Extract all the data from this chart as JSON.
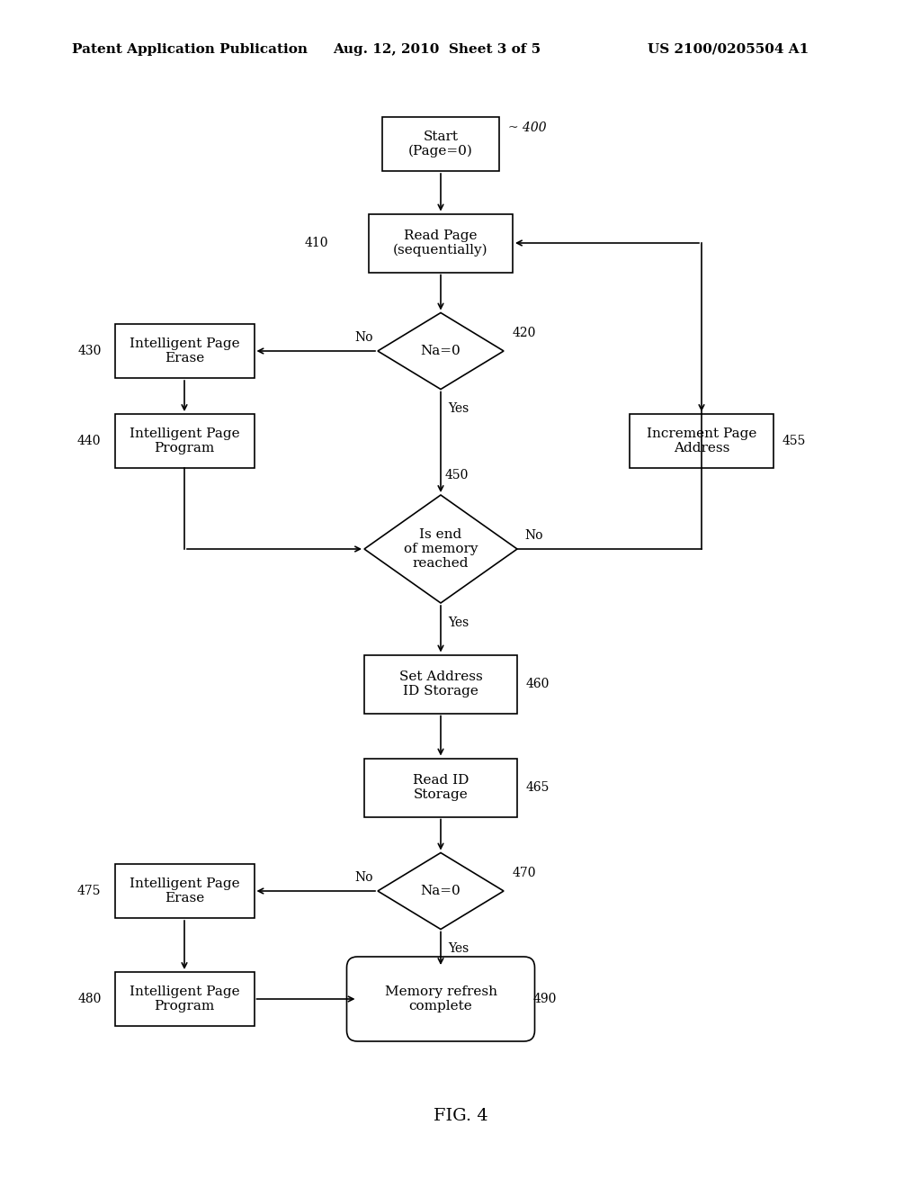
{
  "title_header": "Patent Application Publication",
  "date_header": "Aug. 12, 2010  Sheet 3 of 5",
  "patent_header": "US 2100/0205504 A1",
  "fig_label": "FIG. 4",
  "bg_color": "#ffffff"
}
